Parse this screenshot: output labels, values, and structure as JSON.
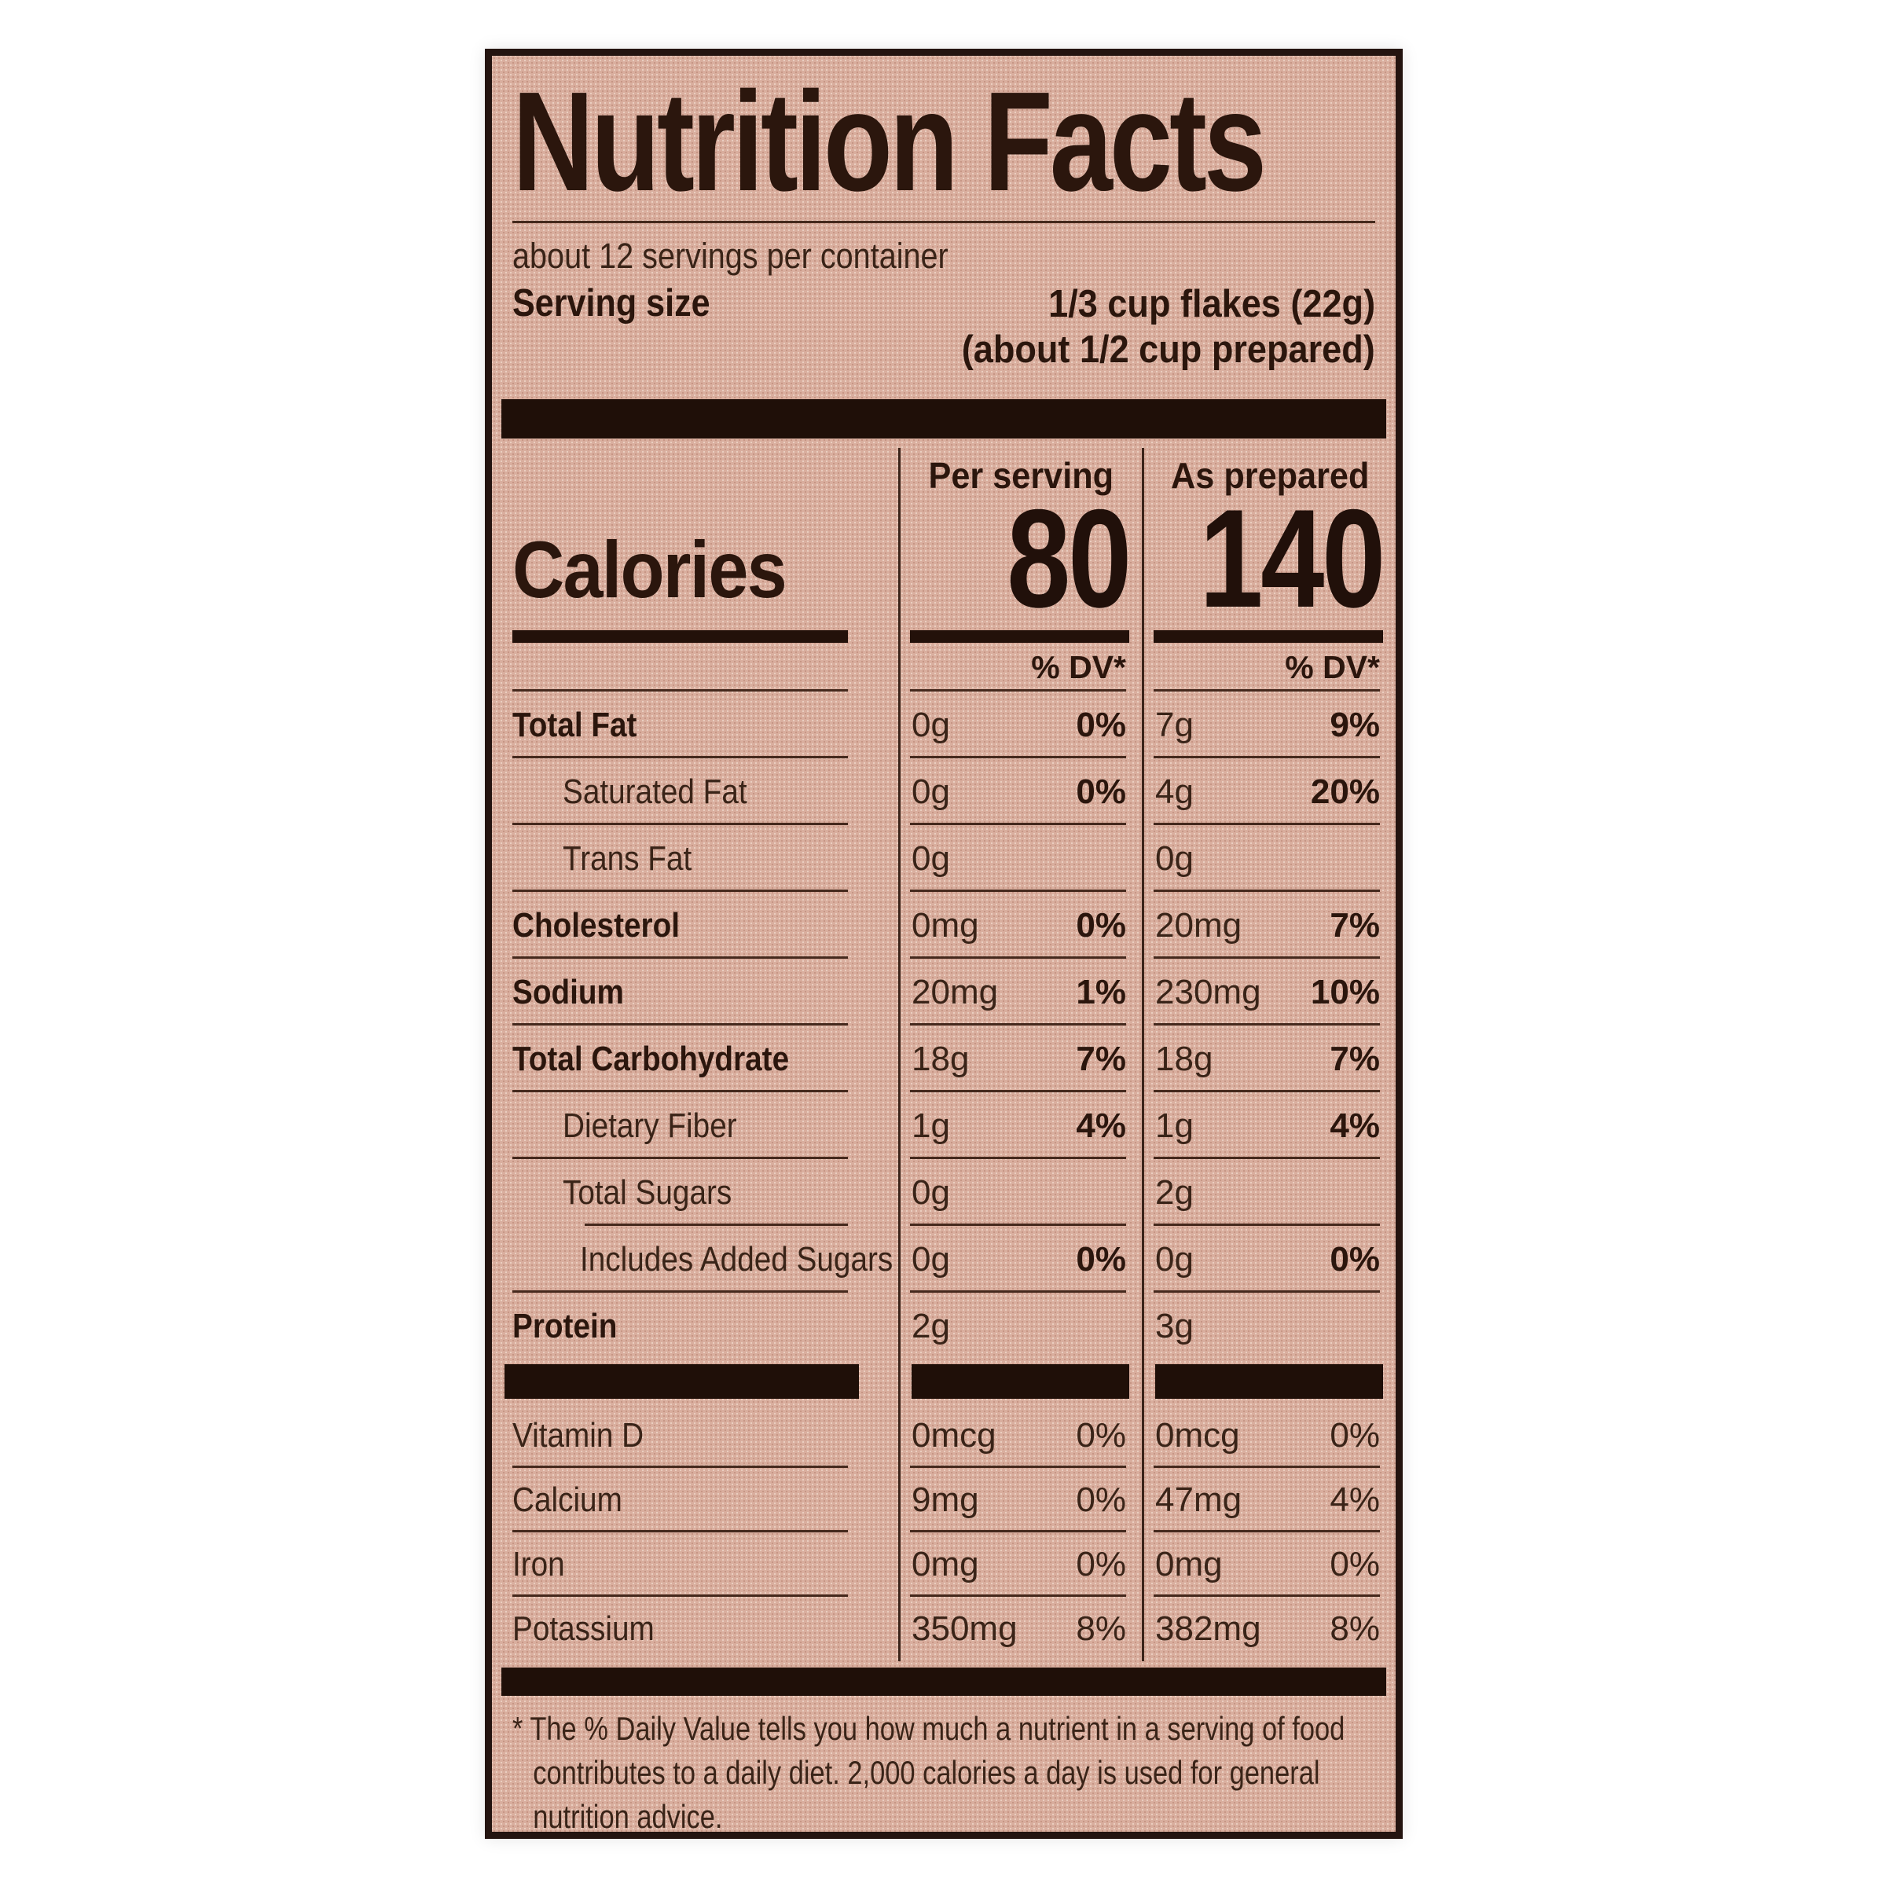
{
  "label": {
    "title": "Nutrition Facts",
    "servings_per_container": "about 12 servings per container",
    "serving_size": {
      "label": "Serving size",
      "line1": "1/3 cup flakes (22g)",
      "line2": "(about 1/2 cup prepared)"
    },
    "calories": {
      "word": "Calories",
      "col1_header": "Per serving",
      "col2_header": "As prepared",
      "per_serving": "80",
      "as_prepared": "140",
      "dv_header": "% DV*"
    },
    "nutrients": [
      {
        "name": "Total Fat",
        "per_serving_amount": "0g",
        "per_serving_dv": "0%",
        "as_prepared_amount": "7g",
        "as_prepared_dv": "9%",
        "bold": true,
        "indent": 0
      },
      {
        "name": "Saturated Fat",
        "per_serving_amount": "0g",
        "per_serving_dv": "0%",
        "as_prepared_amount": "4g",
        "as_prepared_dv": "20%",
        "bold": false,
        "indent": 1
      },
      {
        "name": "Trans Fat",
        "per_serving_amount": "0g",
        "per_serving_dv": "",
        "as_prepared_amount": "0g",
        "as_prepared_dv": "",
        "bold": false,
        "indent": 1
      },
      {
        "name": "Cholesterol",
        "per_serving_amount": "0mg",
        "per_serving_dv": "0%",
        "as_prepared_amount": "20mg",
        "as_prepared_dv": "7%",
        "bold": true,
        "indent": 0
      },
      {
        "name": "Sodium",
        "per_serving_amount": "20mg",
        "per_serving_dv": "1%",
        "as_prepared_amount": "230mg",
        "as_prepared_dv": "10%",
        "bold": true,
        "indent": 0
      },
      {
        "name": "Total Carbohydrate",
        "per_serving_amount": "18g",
        "per_serving_dv": "7%",
        "as_prepared_amount": "18g",
        "as_prepared_dv": "7%",
        "bold": true,
        "indent": 0
      },
      {
        "name": "Dietary Fiber",
        "per_serving_amount": "1g",
        "per_serving_dv": "4%",
        "as_prepared_amount": "1g",
        "as_prepared_dv": "4%",
        "bold": false,
        "indent": 1
      },
      {
        "name": "Total Sugars",
        "per_serving_amount": "0g",
        "per_serving_dv": "",
        "as_prepared_amount": "2g",
        "as_prepared_dv": "",
        "bold": false,
        "indent": 1,
        "separator_indent": true
      },
      {
        "name": "Includes Added Sugars",
        "per_serving_amount": "0g",
        "per_serving_dv": "0%",
        "as_prepared_amount": "0g",
        "as_prepared_dv": "0%",
        "bold": false,
        "indent": 2
      },
      {
        "name": "Protein",
        "per_serving_amount": "2g",
        "per_serving_dv": "",
        "as_prepared_amount": "3g",
        "as_prepared_dv": "",
        "bold": true,
        "indent": 0,
        "no_separator": true
      }
    ],
    "vitamins": [
      {
        "name": "Vitamin D",
        "per_serving_amount": "0mcg",
        "per_serving_dv": "0%",
        "as_prepared_amount": "0mcg",
        "as_prepared_dv": "0%"
      },
      {
        "name": "Calcium",
        "per_serving_amount": "9mg",
        "per_serving_dv": "0%",
        "as_prepared_amount": "47mg",
        "as_prepared_dv": "4%"
      },
      {
        "name": "Iron",
        "per_serving_amount": "0mg",
        "per_serving_dv": "0%",
        "as_prepared_amount": "0mg",
        "as_prepared_dv": "0%"
      },
      {
        "name": "Potassium",
        "per_serving_amount": "350mg",
        "per_serving_dv": "8%",
        "as_prepared_amount": "382mg",
        "as_prepared_dv": "8%",
        "no_separator": true
      }
    ],
    "footnote": "* The % Daily Value tells you how much a nutrient in a serving of food contributes to a daily diet. 2,000 calories a day is used for general nutrition advice.",
    "colors": {
      "label_background": "#d9ae9e",
      "ink": "#2b160d",
      "thick_bar": "#1f0f08"
    }
  }
}
